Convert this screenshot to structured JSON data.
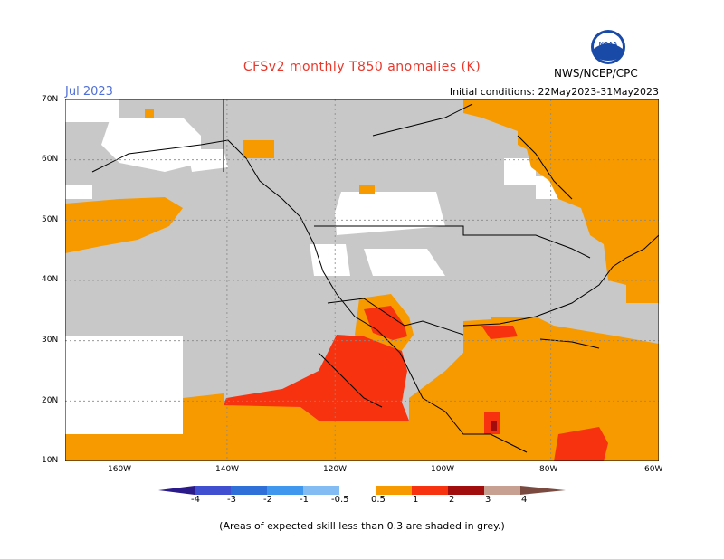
{
  "header": {
    "title": "CFSv2 monthly T850 anomalies (K)",
    "month": "Jul 2023",
    "initial_conditions": "Initial conditions: 22May2023-31May2023",
    "agency": "NWS/NCEP/CPC",
    "logo_text": "NOAA"
  },
  "footer": {
    "note": "(Areas of expected skill less than 0.3 are shaded in grey.)"
  },
  "axes": {
    "lat_labels": [
      "70N",
      "60N",
      "50N",
      "40N",
      "30N",
      "20N",
      "10N"
    ],
    "lon_labels": [
      "160W",
      "140W",
      "120W",
      "100W",
      "80W",
      "60W"
    ]
  },
  "colorbar": {
    "labels": [
      "-4",
      "-3",
      "-2",
      "-1",
      "-0.5",
      "0.5",
      "1",
      "2",
      "3",
      "4"
    ],
    "colors": {
      "lt-4": "#2a1a8a",
      "-4_-3": "#3f4fd0",
      "-3_-2": "#2e6fd8",
      "-2_-1": "#3f97ee",
      "-1_-0.5": "#82bcf3",
      "-0.5_0.5": "#ffffff",
      "0.5_1": "#f79a00",
      "1_2": "#f7320e",
      "2_3": "#a10c0c",
      "3_4": "#c8a092",
      "gt4": "#7a4a40"
    }
  },
  "map_colors": {
    "grey_low_skill": "#c8c8c8",
    "neutral": "#ffffff",
    "warm_0.5_1": "#f79a00",
    "warm_1_2": "#f7320e",
    "warm_2_3": "#a10c0c"
  }
}
